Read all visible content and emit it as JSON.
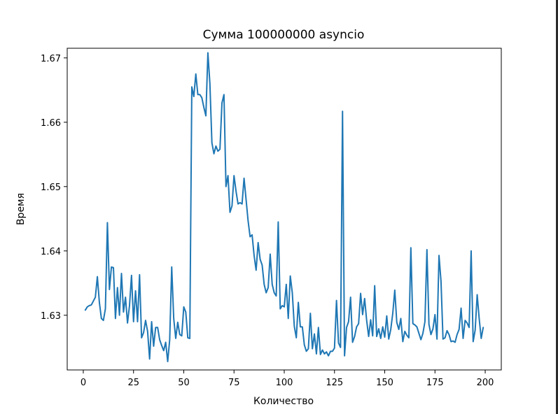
{
  "chart_data": {
    "type": "line",
    "title": "Сумма 100000000 asyncio",
    "xlabel": "Количество",
    "ylabel": "Время",
    "xlim": [
      -8,
      208
    ],
    "ylim": [
      1.6215,
      1.6715
    ],
    "xticks": [
      0,
      25,
      50,
      75,
      100,
      125,
      150,
      175,
      200
    ],
    "yticks": [
      1.63,
      1.64,
      1.65,
      1.66,
      1.67
    ],
    "ytick_labels": [
      "1.63",
      "1.64",
      "1.65",
      "1.66",
      "1.67"
    ],
    "grid": false,
    "color": "#1f77b4",
    "series": [
      {
        "x": [
          1,
          2,
          3,
          4,
          5,
          6,
          7,
          8,
          9,
          10,
          11,
          12,
          13,
          14,
          15,
          16,
          17,
          18,
          19,
          20,
          21,
          22,
          23,
          24,
          25,
          26,
          27,
          28,
          29,
          30,
          31,
          32,
          33,
          34,
          35,
          36,
          37,
          38,
          39,
          40,
          41,
          42,
          43,
          44,
          45,
          46,
          47,
          48,
          49,
          50,
          51,
          52,
          53,
          54,
          55,
          56,
          57,
          58,
          59,
          60,
          61,
          62,
          63,
          64,
          65,
          66,
          67,
          68,
          69,
          70,
          71,
          72,
          73,
          74,
          75,
          76,
          77,
          78,
          79,
          80,
          81,
          82,
          83,
          84,
          85,
          86,
          87,
          88,
          89,
          90,
          91,
          92,
          93,
          94,
          95,
          96,
          97,
          98,
          99,
          100,
          101,
          102,
          103,
          104,
          105,
          106,
          107,
          108,
          109,
          110,
          111,
          112,
          113,
          114,
          115,
          116,
          117,
          118,
          119,
          120,
          121,
          122,
          123,
          124,
          125,
          126,
          127,
          128,
          129,
          130,
          131,
          132,
          133,
          134,
          135,
          136,
          137,
          138,
          139,
          140,
          141,
          142,
          143,
          144,
          145,
          146,
          147,
          148,
          149,
          150,
          151,
          152,
          153,
          154,
          155,
          156,
          157,
          158,
          159,
          160,
          161,
          162,
          163,
          164,
          165,
          166,
          167,
          168,
          169,
          170,
          171,
          172,
          173,
          174,
          175,
          176,
          177,
          178,
          179,
          180,
          181,
          182,
          183,
          184,
          185,
          186,
          187,
          188,
          189,
          190,
          191,
          192,
          193,
          194,
          195,
          196,
          197,
          198,
          199
        ],
        "values": [
          1.6308,
          1.6313,
          1.6315,
          1.6316,
          1.6322,
          1.6328,
          1.636,
          1.632,
          1.6295,
          1.6292,
          1.631,
          1.6444,
          1.634,
          1.6375,
          1.6374,
          1.6295,
          1.6343,
          1.63,
          1.6365,
          1.6305,
          1.6328,
          1.6288,
          1.6315,
          1.6362,
          1.629,
          1.6338,
          1.629,
          1.6363,
          1.6265,
          1.6273,
          1.6292,
          1.6275,
          1.6232,
          1.629,
          1.6252,
          1.6281,
          1.6281,
          1.6262,
          1.6253,
          1.6245,
          1.6258,
          1.6228,
          1.6262,
          1.6375,
          1.6295,
          1.6264,
          1.6289,
          1.627,
          1.6268,
          1.6313,
          1.6305,
          1.6265,
          1.6264,
          1.6655,
          1.664,
          1.6675,
          1.6643,
          1.6643,
          1.6638,
          1.6623,
          1.661,
          1.6708,
          1.666,
          1.6568,
          1.6551,
          1.6563,
          1.6555,
          1.6558,
          1.663,
          1.6643,
          1.65,
          1.6517,
          1.646,
          1.647,
          1.6517,
          1.6493,
          1.6473,
          1.6475,
          1.6473,
          1.6513,
          1.648,
          1.6447,
          1.6422,
          1.6425,
          1.6393,
          1.637,
          1.6413,
          1.6387,
          1.6378,
          1.6348,
          1.6335,
          1.6343,
          1.6395,
          1.6348,
          1.6335,
          1.633,
          1.6445,
          1.631,
          1.6315,
          1.6313,
          1.6348,
          1.6295,
          1.6361,
          1.6335,
          1.6283,
          1.6265,
          1.632,
          1.6282,
          1.6282,
          1.6254,
          1.6244,
          1.6248,
          1.6303,
          1.6248,
          1.6271,
          1.624,
          1.6281,
          1.6239,
          1.6246,
          1.624,
          1.6243,
          1.6237,
          1.6244,
          1.6244,
          1.6249,
          1.6323,
          1.6257,
          1.625,
          1.6617,
          1.6237,
          1.6281,
          1.629,
          1.6328,
          1.6258,
          1.6267,
          1.6282,
          1.6287,
          1.6334,
          1.6301,
          1.6326,
          1.6292,
          1.6267,
          1.6293,
          1.6268,
          1.6346,
          1.6267,
          1.6279,
          1.6264,
          1.6282,
          1.6266,
          1.6299,
          1.6263,
          1.6278,
          1.6303,
          1.6339,
          1.6289,
          1.6278,
          1.6295,
          1.6259,
          1.6275,
          1.6269,
          1.6265,
          1.6405,
          1.6287,
          1.6285,
          1.6282,
          1.6272,
          1.6262,
          1.6272,
          1.629,
          1.6402,
          1.6286,
          1.627,
          1.6279,
          1.6301,
          1.6263,
          1.6393,
          1.6353,
          1.6263,
          1.6265,
          1.6276,
          1.627,
          1.6259,
          1.626,
          1.6258,
          1.627,
          1.6278,
          1.6311,
          1.6264,
          1.6292,
          1.6288,
          1.6281,
          1.64,
          1.6259,
          1.6277,
          1.6332,
          1.6295,
          1.6264,
          1.6281
        ]
      }
    ]
  }
}
